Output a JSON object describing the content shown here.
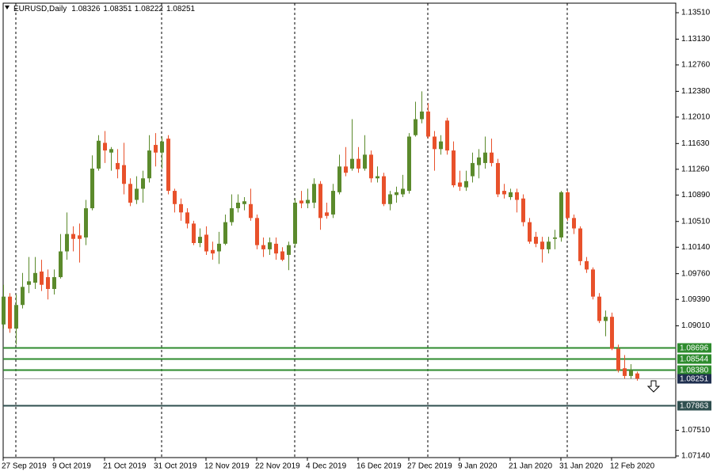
{
  "chart_data": {
    "type": "candlestick",
    "title": "EURUSD,Daily",
    "up_color": "#5b8a2c",
    "down_color": "#e8512b",
    "categories": [
      "27 Sep 2019",
      null,
      null,
      null,
      null,
      null,
      null,
      null,
      "9 Oct 2019",
      null,
      null,
      null,
      null,
      null,
      null,
      null,
      "21 Oct 2019",
      null,
      null,
      null,
      null,
      null,
      null,
      null,
      "31 Oct 2019",
      null,
      null,
      null,
      null,
      null,
      null,
      null,
      "12 Nov 2019",
      null,
      null,
      null,
      null,
      null,
      null,
      null,
      "22 Nov 2019",
      null,
      null,
      null,
      null,
      null,
      null,
      null,
      "4 Dec 2019",
      null,
      null,
      null,
      null,
      null,
      null,
      null,
      "16 Dec 2019",
      null,
      null,
      null,
      null,
      null,
      null,
      null,
      "27 Dec 2019",
      null,
      null,
      null,
      null,
      null,
      null,
      null,
      "9 Jan 2020",
      null,
      null,
      null,
      null,
      null,
      null,
      null,
      "21 Jan 2020",
      null,
      null,
      null,
      null,
      null,
      null,
      null,
      "31 Jan 2020",
      null,
      null,
      null,
      null,
      null,
      null,
      null,
      "12 Feb 2020",
      null,
      null,
      null,
      null
    ],
    "open": [
      1.0903,
      1.0943,
      1.0897,
      1.0931,
      1.096,
      1.0963,
      1.0979,
      1.0971,
      1.0954,
      1.0971,
      1.1008,
      1.1033,
      1.1031,
      1.1028,
      1.107,
      1.1127,
      1.1164,
      1.115,
      1.1135,
      1.1132,
      1.1105,
      1.1082,
      1.1098,
      1.1113,
      1.1161,
      1.115,
      1.117,
      1.1095,
      1.1076,
      1.1064,
      1.1048,
      1.102,
      1.1032,
      1.101,
      1.1008,
      1.1019,
      1.105,
      1.107,
      1.1076,
      1.1076,
      1.1056,
      1.1017,
      1.1011,
      1.1019,
      1.1008,
      1.1003,
      1.1019,
      1.1081,
      1.1077,
      1.1078,
      1.1105,
      1.1064,
      1.1061,
      1.1093,
      1.113,
      1.1127,
      1.1141,
      1.1127,
      1.1147,
      1.1113,
      1.1116,
      1.1076,
      1.1089,
      1.109,
      1.1095,
      1.1175,
      1.1198,
      1.1209,
      1.1173,
      1.1155,
      1.1196,
      1.1153,
      1.1107,
      1.11,
      1.1116,
      1.1132,
      1.1135,
      1.115,
      1.1135,
      1.1095,
      1.1086,
      1.1093,
      1.1084,
      1.105,
      1.1029,
      1.1022,
      1.1011,
      1.1026,
      1.1028,
      1.1093,
      1.1056,
      1.1041,
      1.0994,
      1.0982,
      1.0943,
      1.0908,
      1.0914,
      1.0868,
      1.084,
      1.0829,
      1.08326
    ],
    "high": [
      1.096,
      1.0948,
      1.0946,
      1.0977,
      1.1,
      1.1,
      1.0996,
      1.0982,
      1.0982,
      1.1033,
      1.1064,
      1.1044,
      1.1048,
      1.1082,
      1.1146,
      1.1175,
      1.1181,
      1.1158,
      1.1155,
      1.1164,
      1.1113,
      1.1116,
      1.1124,
      1.1175,
      1.1178,
      1.1173,
      1.1175,
      1.1098,
      1.1084,
      1.107,
      1.1052,
      1.1041,
      1.1044,
      1.1022,
      1.1036,
      1.1061,
      1.109,
      1.109,
      1.1086,
      1.1098,
      1.1061,
      1.1028,
      1.1028,
      1.1028,
      1.1014,
      1.1022,
      1.1084,
      1.1095,
      1.1098,
      1.1113,
      1.1109,
      1.1078,
      1.1105,
      1.1147,
      1.1158,
      1.1198,
      1.1158,
      1.1175,
      1.1153,
      1.113,
      1.1121,
      1.1095,
      1.1101,
      1.1118,
      1.1178,
      1.1223,
      1.1238,
      1.1221,
      1.1181,
      1.1175,
      1.12,
      1.1166,
      1.1124,
      1.1124,
      1.115,
      1.1155,
      1.1173,
      1.117,
      1.1141,
      1.1105,
      1.1098,
      1.1098,
      1.109,
      1.1056,
      1.1036,
      1.1029,
      1.1029,
      1.1039,
      1.1095,
      1.1095,
      1.1061,
      1.1044,
      1.1,
      1.0985,
      1.0948,
      1.0923,
      1.092,
      1.0874,
      1.0859,
      1.0846,
      1.08351
    ],
    "low": [
      1.0897,
      1.0891,
      1.0874,
      1.0926,
      1.0948,
      1.0954,
      1.0951,
      1.0939,
      1.0946,
      1.0969,
      1.0996,
      1.1008,
      1.0992,
      1.1017,
      1.1067,
      1.1124,
      1.1135,
      1.1124,
      1.1113,
      1.109,
      1.1073,
      1.1076,
      1.1078,
      1.1107,
      1.113,
      1.1127,
      1.109,
      1.1064,
      1.1052,
      1.1041,
      1.1017,
      1.1014,
      1.1003,
      1.0996,
      1.099,
      1.1017,
      1.1045,
      1.1064,
      1.1067,
      1.1052,
      1.1011,
      1.1,
      1.1003,
      1.0996,
      1.0994,
      1.0981,
      1.1014,
      1.107,
      1.107,
      1.107,
      1.1039,
      1.1055,
      1.1056,
      1.109,
      1.1116,
      1.1124,
      1.1121,
      1.1124,
      1.1107,
      1.1107,
      1.1073,
      1.1067,
      1.1078,
      1.1086,
      1.1091,
      1.1173,
      1.1192,
      1.117,
      1.1124,
      1.1147,
      1.1147,
      1.11,
      1.1095,
      1.1095,
      1.1107,
      1.1113,
      1.1127,
      1.113,
      1.1086,
      1.1084,
      1.1082,
      1.1064,
      1.1044,
      1.1019,
      1.1014,
      1.0992,
      1.1005,
      1.1011,
      1.1022,
      1.1052,
      1.1033,
      1.0988,
      1.0977,
      1.0939,
      1.0905,
      1.0886,
      1.0866,
      1.0834,
      1.0825,
      1.0825,
      1.08222
    ],
    "close": [
      1.0943,
      1.0897,
      1.0931,
      1.0957,
      1.0965,
      1.0977,
      1.096,
      1.0954,
      1.0971,
      1.1008,
      1.1033,
      1.1026,
      1.1026,
      1.107,
      1.1127,
      1.1167,
      1.1153,
      1.1155,
      1.1126,
      1.1105,
      1.1078,
      1.1098,
      1.1113,
      1.1153,
      1.115,
      1.1166,
      1.1095,
      1.1076,
      1.1064,
      1.1048,
      1.102,
      1.1029,
      1.1008,
      1.1005,
      1.1019,
      1.105,
      1.107,
      1.1078,
      1.108,
      1.1056,
      1.1017,
      1.1011,
      1.1021,
      1.1005,
      1.0996,
      1.1017,
      1.1078,
      1.1077,
      1.1082,
      1.1105,
      1.1056,
      1.1059,
      1.1095,
      1.113,
      1.1121,
      1.1141,
      1.1127,
      1.1147,
      1.1113,
      1.1116,
      1.1076,
      1.109,
      1.1093,
      1.1098,
      1.1173,
      1.1198,
      1.1209,
      1.1173,
      1.1155,
      1.1166,
      1.1153,
      1.1103,
      1.1101,
      1.1109,
      1.1135,
      1.1143,
      1.115,
      1.1135,
      1.109,
      1.109,
      1.1093,
      1.1082,
      1.105,
      1.1022,
      1.1019,
      1.1011,
      1.1022,
      1.1028,
      1.1093,
      1.1056,
      1.1041,
      1.0994,
      1.0982,
      1.0943,
      1.0908,
      1.0914,
      1.0868,
      1.0837,
      1.0829,
      1.0837,
      1.08251
    ],
    "ylim": [
      1.07117,
      1.13647
    ],
    "yticks": [
      {
        "value": 1.1351,
        "label": "1.13510"
      },
      {
        "value": 1.1313,
        "label": "1.13130"
      },
      {
        "value": 1.1276,
        "label": "1.12760"
      },
      {
        "value": 1.1238,
        "label": "1.12380"
      },
      {
        "value": 1.1201,
        "label": "1.12010"
      },
      {
        "value": 1.1163,
        "label": "1.11630"
      },
      {
        "value": 1.1126,
        "label": "1.11260"
      },
      {
        "value": 1.1089,
        "label": "1.10890"
      },
      {
        "value": 1.1051,
        "label": "1.10510"
      },
      {
        "value": 1.1014,
        "label": "1.10140"
      },
      {
        "value": 1.0976,
        "label": "1.09760"
      },
      {
        "value": 1.0939,
        "label": "1.09390"
      },
      {
        "value": 1.0901,
        "label": "1.09010"
      },
      {
        "value": 1.0751,
        "label": "1.07510"
      },
      {
        "value": 1.0714,
        "label": "1.07140"
      }
    ],
    "levels": [
      {
        "value": 1.08696,
        "color": "#2e8b2e"
      },
      {
        "value": 1.08544,
        "color": "#2e8b2e"
      },
      {
        "value": 1.0838,
        "label": "1.08380",
        "color": "#2e8b2e"
      },
      {
        "value": 1.08251,
        "color": "#1f2f4f"
      },
      {
        "value": 1.07863,
        "color": "#2f4f4f"
      }
    ]
  }
}
